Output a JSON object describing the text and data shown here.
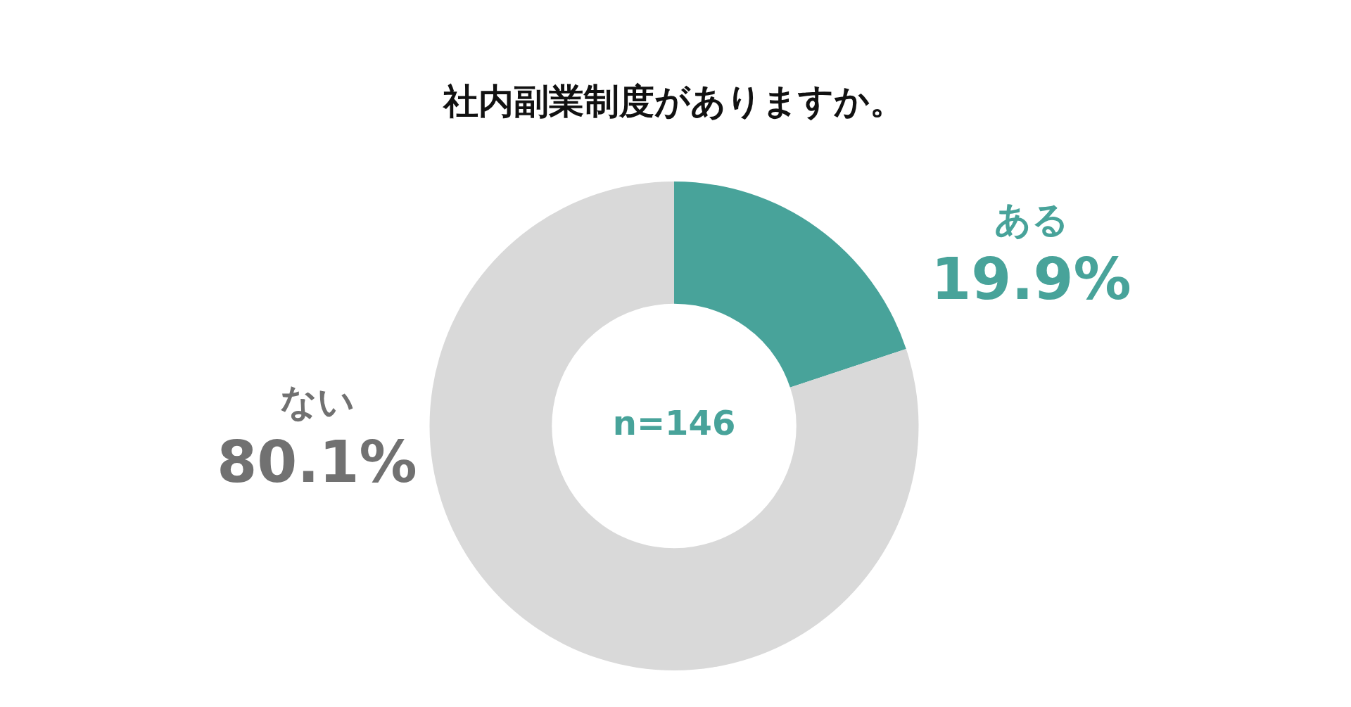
{
  "chart_data": {
    "type": "donut",
    "title": "社内副業制度がありますか。",
    "categories": [
      "ある",
      "ない"
    ],
    "values": [
      19.9,
      80.1
    ],
    "value_labels": [
      "19.9%",
      "80.1%"
    ],
    "colors": [
      "#48a39a",
      "#d9d9d9"
    ],
    "annotations": [
      "n=146"
    ],
    "legend": false
  }
}
